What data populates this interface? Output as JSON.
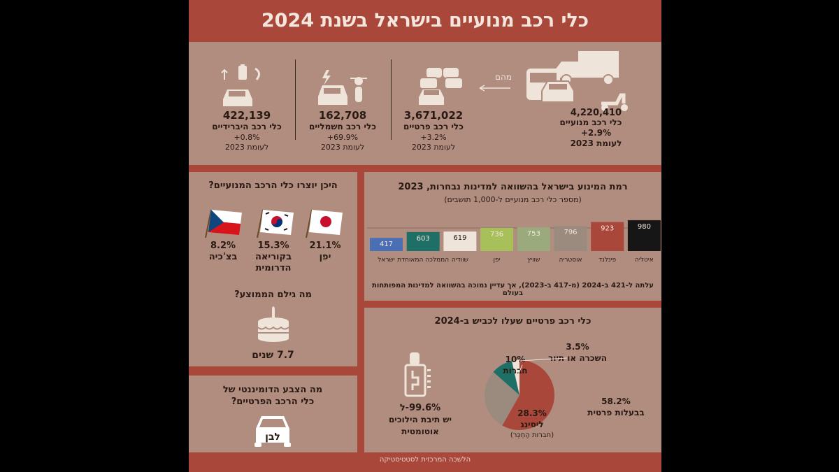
{
  "title": "כלי רכב מנועיים בישראל בשנת 2024",
  "stats": {
    "motor": {
      "value": "4,220,410",
      "label": "כלי רכב מנועיים",
      "change": "+2.9%",
      "ref": "לעומת 2023"
    },
    "of_which": "מהם",
    "private": {
      "value": "3,671,022",
      "label": "כלי רכב פרטיים",
      "change": "+3.2%",
      "ref": "לעומת 2023"
    },
    "electric": {
      "value": "162,708",
      "label": "כלי רכב חשמליים",
      "change": "+69.9%",
      "ref": "לעומת 2023"
    },
    "hybrid": {
      "value": "422,139",
      "label": "כלי רכב היברידיים",
      "change": "+0.8%",
      "ref": "לעומת 2023"
    }
  },
  "origin": {
    "question": "היכן יוצרו כלי הרכב המנועיים?",
    "items": [
      {
        "pct": "21.1%",
        "country": "יפן"
      },
      {
        "pct": "15.3%",
        "country": "בקוריאה הדרומית"
      },
      {
        "pct": "8.2%",
        "country": "בצ'כיה"
      }
    ]
  },
  "age": {
    "question": "מה גילם הממוצע?",
    "value": "7.7 שנים"
  },
  "color": {
    "question": "מה הצבע הדומיננטי של כלי הרכב הפרטיים?",
    "answer": "לבן"
  },
  "motorization": {
    "title": "רמת המינוע בישראל בהשוואה למדינות נבחרות, 2023",
    "subtitle": "(מספר כלי רכב מנועיים ל-1,000 תושבים)",
    "note": "עלתה ל-421 ב-2024 (מ-417 ב-2023), אך עדיין נמוכה בהשוואה למדינות המפותחות בעולם"
  },
  "road": {
    "title": "כלי רכב פרטיים שעלו לכביש ב-2024",
    "auto_pct": "99.6%-ל",
    "auto_label": "יש תיבת הילוכים אוטומטית"
  },
  "source": "הלשכה המרכזית לסטטיסטיקה",
  "colors": {
    "bg": "#a9473a",
    "panel": "#b08d7f",
    "dark_text": "#2a1a14",
    "light_text": "#f4e6dc"
  },
  "chart_data": [
    {
      "type": "bar",
      "title": "רמת המינוע בישראל בהשוואה למדינות נבחרות, 2023",
      "categories": [
        "ישראל",
        "הממלכה המאוחדת",
        "שוודיה",
        "יפן",
        "שוויץ",
        "אוסטריה",
        "פינלנד",
        "איטליה"
      ],
      "values": [
        417,
        603,
        619,
        736,
        753,
        796,
        923,
        980
      ],
      "colors": [
        "#4a6fb5",
        "#1e6f66",
        "#efe4da",
        "#a8c05a",
        "#9aaa7c",
        "#9b8a7e",
        "#a9473a",
        "#161616"
      ]
    },
    {
      "type": "pie",
      "title": "כלי רכב פרטיים שעלו לכביש ב-2024",
      "labels": [
        "בבעלות פרטית",
        "ליסינג",
        "חברות",
        "השכרה או תיור"
      ],
      "values": [
        58.2,
        28.3,
        10,
        3.5
      ],
      "pct_labels": [
        "58.2%",
        "28.3%",
        "10%",
        "3.5%"
      ],
      "sublabels": [
        "",
        "(חברות הֶחְכֵּר)",
        "",
        ""
      ],
      "colors": [
        "#a9473a",
        "#9b8a7e",
        "#1e6f66",
        "#efe4da"
      ]
    }
  ]
}
